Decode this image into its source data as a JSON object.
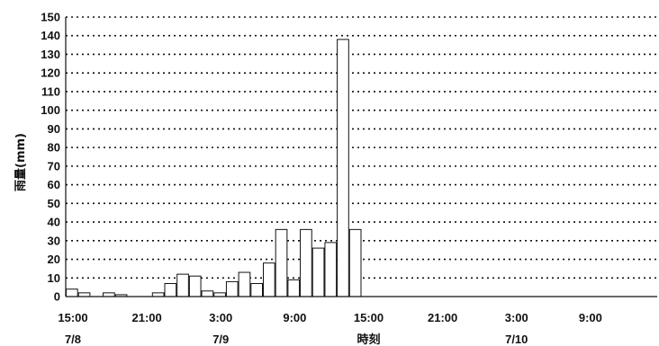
{
  "chart_data": {
    "type": "bar",
    "ylabel": "雨量(mm)",
    "xlabel": "時刻",
    "ylim": [
      0,
      150
    ],
    "yticks": [
      0,
      10,
      20,
      30,
      40,
      50,
      60,
      70,
      80,
      90,
      100,
      110,
      120,
      130,
      140,
      150
    ],
    "grid": true,
    "xtick_labels": [
      {
        "time": "15:00",
        "date": "7/8",
        "hour_index": 0
      },
      {
        "time": "21:00",
        "date": "",
        "hour_index": 6
      },
      {
        "time": "3:00",
        "date": "7/9",
        "hour_index": 12
      },
      {
        "time": "9:00",
        "date": "",
        "hour_index": 18
      },
      {
        "time": "15:00",
        "date": "",
        "hour_index": 24
      },
      {
        "time": "21:00",
        "date": "",
        "hour_index": 30
      },
      {
        "time": "3:00",
        "date": "7/10",
        "hour_index": 36
      },
      {
        "time": "9:00",
        "date": "",
        "hour_index": 42
      }
    ],
    "hour_count": 48,
    "values": [
      4,
      2,
      0,
      2,
      1,
      0,
      0,
      2,
      7,
      12,
      11,
      3,
      2,
      8,
      13,
      7,
      18,
      36,
      9,
      36,
      26,
      29,
      138,
      36,
      0,
      0,
      0,
      0,
      0,
      0,
      0,
      0,
      0,
      0,
      0,
      0,
      0,
      0,
      0,
      0,
      0,
      0,
      0,
      0,
      0,
      0,
      0,
      0
    ]
  }
}
